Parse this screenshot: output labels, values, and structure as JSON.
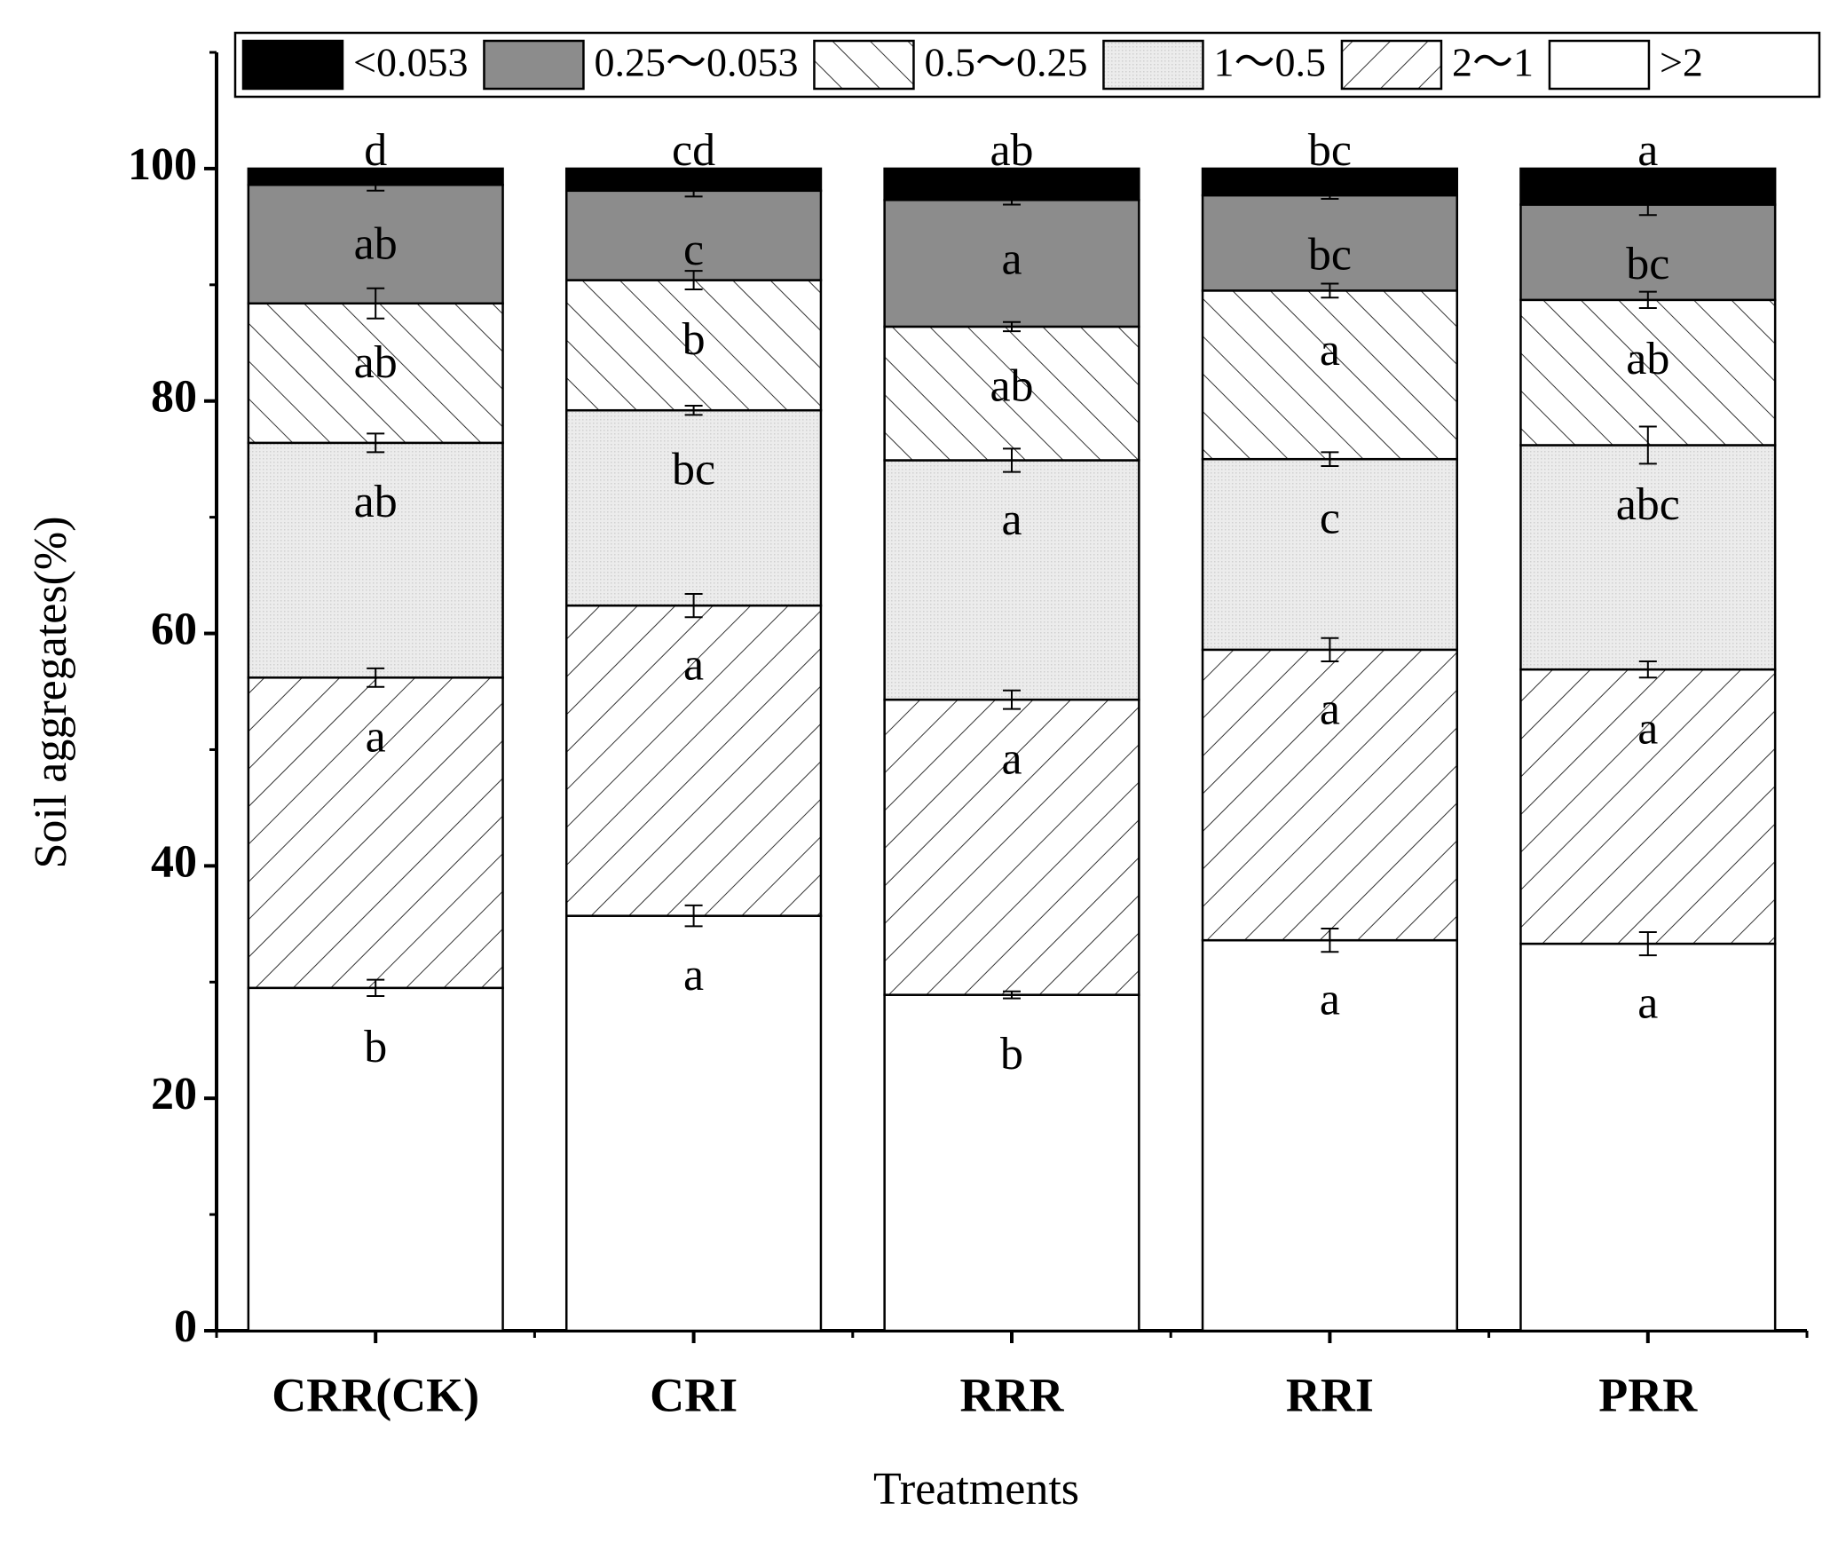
{
  "chart_data": {
    "type": "stacked_bar",
    "x_label": "Treatments",
    "y_label": "Soil aggregates(%)",
    "categories": [
      "CRR(CK)",
      "CRI",
      "RRR",
      "RRI",
      "PRR"
    ],
    "ylim": [
      0,
      110
    ],
    "yticks": [
      0,
      20,
      40,
      60,
      80,
      100
    ],
    "yminorticks": [
      10,
      30,
      50,
      70,
      90,
      110
    ],
    "series": [
      {
        "name": "<0.053",
        "color": "#000000",
        "hatch": null,
        "values": [
          1.4,
          1.9,
          2.7,
          2.3,
          3.1
        ],
        "letters": [
          "d",
          "cd",
          "ab",
          "bc",
          "a"
        ]
      },
      {
        "name": "0.25～0.053",
        "color": "#8c8c8c",
        "hatch": null,
        "values": [
          10.2,
          7.7,
          10.9,
          8.2,
          8.2
        ],
        "errors": [
          0.5,
          0.5,
          0.4,
          0.3,
          0.9
        ],
        "letters": [
          "ab",
          "c",
          "a",
          "bc",
          "bc"
        ]
      },
      {
        "name": "0.5～0.25",
        "color": "#ffffff",
        "hatch": "backslash",
        "values": [
          12.0,
          11.2,
          11.5,
          14.5,
          12.5
        ],
        "errors": [
          1.3,
          0.8,
          0.4,
          0.6,
          0.7
        ],
        "letters": [
          "ab",
          "b",
          "ab",
          "a",
          "ab"
        ]
      },
      {
        "name": "1～0.5",
        "color": "#e8e8e8",
        "hatch": "dots",
        "values": [
          20.2,
          16.8,
          20.6,
          16.4,
          19.3
        ],
        "errors": [
          0.8,
          0.4,
          1.0,
          0.6,
          1.6
        ],
        "letters": [
          "ab",
          "bc",
          "a",
          "c",
          "abc"
        ]
      },
      {
        "name": "2～1",
        "color": "#ffffff",
        "hatch": "slash",
        "values": [
          26.7,
          26.7,
          25.4,
          25.0,
          23.6
        ],
        "errors": [
          0.8,
          1.0,
          0.8,
          1.0,
          0.7
        ],
        "letters": [
          "a",
          "a",
          "a",
          "a",
          "a"
        ]
      },
      {
        "name": ">2",
        "color": "#ffffff",
        "hatch": null,
        "values": [
          29.5,
          35.7,
          28.9,
          33.6,
          33.3
        ],
        "errors": [
          0.7,
          0.9,
          0.3,
          1.0,
          1.0
        ],
        "letters": [
          "b",
          "a",
          "b",
          "a",
          "a"
        ]
      }
    ]
  }
}
